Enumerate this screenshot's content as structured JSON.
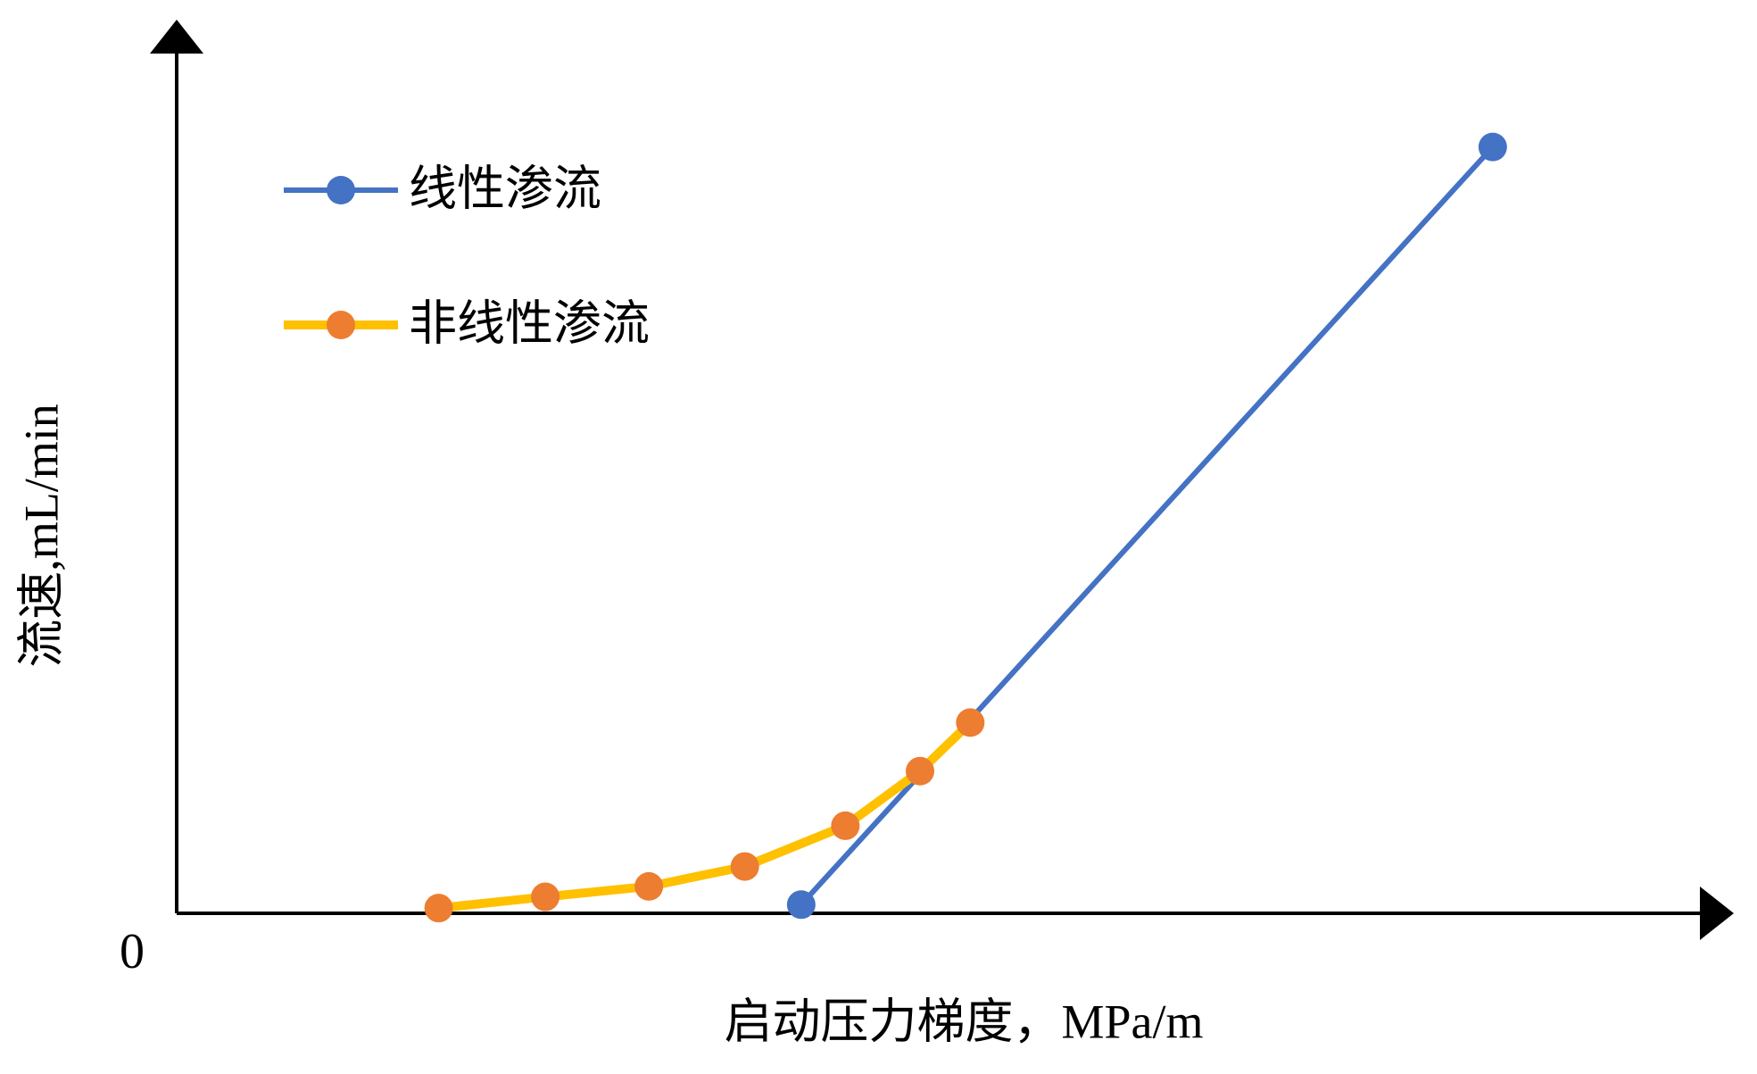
{
  "chart_data": {
    "type": "line",
    "x_label": "启动压力梯度，MPa/m",
    "y_label": "流速,mL/min",
    "xlim": [
      0,
      100
    ],
    "ylim": [
      0,
      100
    ],
    "yticks": [
      0
    ],
    "grid": false,
    "legend": "upper left",
    "series": [
      {
        "name": "线性渗流",
        "color": "#4472c4",
        "marker_color": "#4472c4",
        "x": [
          41.0,
          86.4
        ],
        "values": [
          1.0,
          88.4
        ]
      },
      {
        "name": "非线性渗流",
        "color": "#ffc000",
        "marker_color": "#ed7d31",
        "x": [
          17.2,
          24.2,
          31.0,
          37.3,
          43.9,
          48.8,
          52.1
        ],
        "values": [
          0.6,
          1.9,
          3.1,
          5.4,
          10.1,
          16.4,
          22.0
        ]
      }
    ]
  }
}
